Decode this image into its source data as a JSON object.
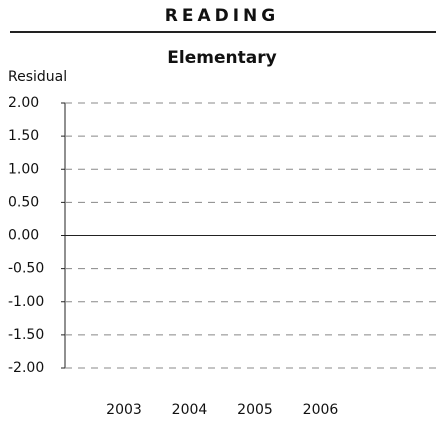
{
  "header": "READING",
  "chart_data": {
    "type": "line",
    "title": "Elementary",
    "y_label": "Residual",
    "categories": [
      "2003",
      "2004",
      "2005",
      "2006"
    ],
    "series": [],
    "ylim": [
      -2,
      2
    ],
    "yticks": [
      {
        "value": -2,
        "label": "-2.00"
      },
      {
        "value": -1.5,
        "label": "-1.50"
      },
      {
        "value": -1,
        "label": "-1.00"
      },
      {
        "value": -0.5,
        "label": "-0.50"
      },
      {
        "value": 0,
        "label": "0.00"
      },
      {
        "value": 0.5,
        "label": "0.50"
      },
      {
        "value": 1,
        "label": "1.00"
      },
      {
        "value": 1.5,
        "label": "1.50"
      },
      {
        "value": 2,
        "label": "2.00"
      }
    ],
    "grid": true
  }
}
